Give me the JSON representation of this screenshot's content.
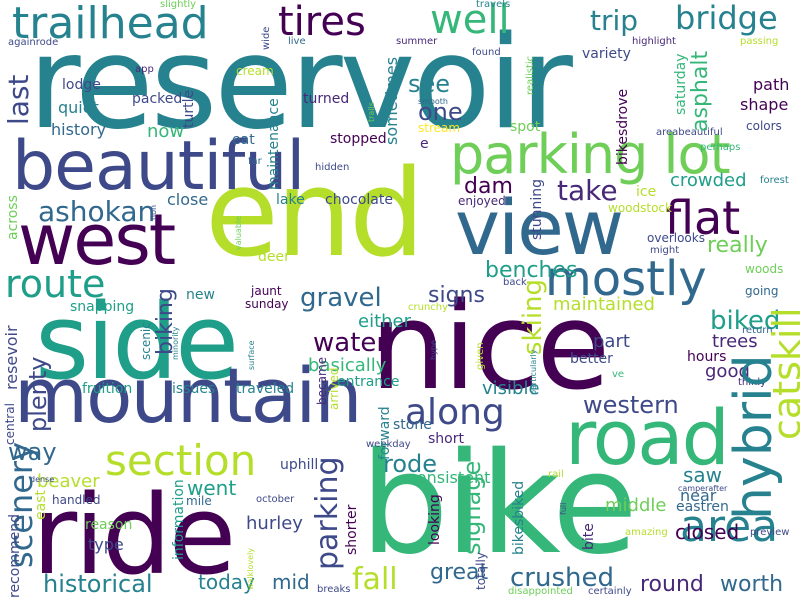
{
  "palette": {
    "background": "#ffffff",
    "colors": [
      "#440154",
      "#482878",
      "#3e4989",
      "#31688e",
      "#26828e",
      "#1f9e89",
      "#35b779",
      "#6ece58",
      "#b5de2b",
      "#fde725"
    ]
  },
  "words": [
    {
      "text": "reservoir",
      "color": "#26828e"
    },
    {
      "text": "end",
      "color": "#b5de2b"
    },
    {
      "text": "nice",
      "color": "#440154"
    },
    {
      "text": "bike",
      "color": "#35b779"
    },
    {
      "text": "side",
      "color": "#1f9e89"
    },
    {
      "text": "ride",
      "color": "#440154"
    },
    {
      "text": "mountain",
      "color": "#3e4989"
    },
    {
      "text": "beautiful",
      "color": "#3e4989"
    },
    {
      "text": "view",
      "color": "#31688e"
    },
    {
      "text": "west",
      "color": "#440154"
    },
    {
      "text": "road",
      "color": "#35b779"
    },
    {
      "text": "parking lot",
      "color": "#6ece58"
    },
    {
      "text": "trailhead",
      "color": "#26828e"
    },
    {
      "text": "mostly",
      "color": "#31688e"
    },
    {
      "text": "section",
      "color": "#b5de2b"
    },
    {
      "text": "hybrid",
      "color": "#26828e"
    },
    {
      "text": "route",
      "color": "#1f9e89"
    },
    {
      "text": "area",
      "color": "#26828e"
    },
    {
      "text": "flat",
      "color": "#440154"
    },
    {
      "text": "tires",
      "color": "#440154"
    },
    {
      "text": "well",
      "color": "#35b779"
    },
    {
      "text": "along",
      "color": "#3e4989"
    },
    {
      "text": "bridge",
      "color": "#26828e"
    },
    {
      "text": "trip",
      "color": "#26828e"
    },
    {
      "text": "ashokan",
      "color": "#31688e"
    },
    {
      "text": "catskill",
      "color": "#b5de2b"
    },
    {
      "text": "scenery",
      "color": "#31688e"
    },
    {
      "text": "historical",
      "color": "#26828e"
    },
    {
      "text": "crushed",
      "color": "#31688e"
    },
    {
      "text": "western",
      "color": "#3e4989"
    },
    {
      "text": "parking",
      "color": "#3e4989"
    },
    {
      "text": "water",
      "color": "#440154"
    },
    {
      "text": "gravel",
      "color": "#31688e"
    },
    {
      "text": "take",
      "color": "#482878"
    },
    {
      "text": "see",
      "color": "#26828e"
    },
    {
      "text": "one",
      "color": "#3e4989"
    },
    {
      "text": "last",
      "color": "#3e4989"
    },
    {
      "text": "really",
      "color": "#6ece58"
    },
    {
      "text": "biked",
      "color": "#1f9e89"
    },
    {
      "text": "benches",
      "color": "#1f9e89"
    },
    {
      "text": "signs",
      "color": "#3e4989"
    },
    {
      "text": "dam",
      "color": "#440154"
    },
    {
      "text": "crowded",
      "color": "#1f9e89"
    },
    {
      "text": "skiing",
      "color": "#b5de2b"
    },
    {
      "text": "fall",
      "color": "#b5de2b"
    },
    {
      "text": "great",
      "color": "#31688e"
    },
    {
      "text": "round",
      "color": "#482878"
    },
    {
      "text": "worth",
      "color": "#31688e"
    },
    {
      "text": "way",
      "color": "#31688e"
    },
    {
      "text": "went",
      "color": "#1f9e89"
    },
    {
      "text": "rode",
      "color": "#26828e"
    },
    {
      "text": "saw",
      "color": "#26828e"
    },
    {
      "text": "signage",
      "color": "#35b779"
    },
    {
      "text": "closed",
      "color": "#440154"
    },
    {
      "text": "beaver",
      "color": "#b5de2b"
    },
    {
      "text": "plenty",
      "color": "#3e4989"
    },
    {
      "text": "today",
      "color": "#26828e"
    },
    {
      "text": "mid",
      "color": "#31688e"
    },
    {
      "text": "asphalt",
      "color": "#35b779"
    },
    {
      "text": "maintained",
      "color": "#b5de2b"
    },
    {
      "text": "basically",
      "color": "#35b779"
    },
    {
      "text": "biking",
      "color": "#3e4989"
    },
    {
      "text": "path",
      "color": "#440154"
    },
    {
      "text": "shape",
      "color": "#440154"
    },
    {
      "text": "quiet",
      "color": "#26828e"
    },
    {
      "text": "history",
      "color": "#31688e"
    },
    {
      "text": "lodge",
      "color": "#3e4989"
    },
    {
      "text": "packed",
      "color": "#3e4989"
    },
    {
      "text": "now",
      "color": "#35b779"
    },
    {
      "text": "turned",
      "color": "#482878"
    },
    {
      "text": "sometimes",
      "color": "#26828e"
    },
    {
      "text": "trees",
      "color": "#482878"
    },
    {
      "text": "good",
      "color": "#482878"
    },
    {
      "text": "part",
      "color": "#3e4989"
    },
    {
      "text": "visible",
      "color": "#26828e"
    },
    {
      "text": "either",
      "color": "#1f9e89"
    },
    {
      "text": "hurley",
      "color": "#3e4989"
    },
    {
      "text": "type",
      "color": "#3e4989"
    },
    {
      "text": "middle",
      "color": "#6ece58"
    },
    {
      "text": "near",
      "color": "#31688e"
    },
    {
      "text": "hours",
      "color": "#440154"
    },
    {
      "text": "better",
      "color": "#3e4989"
    },
    {
      "text": "uphill",
      "color": "#3e4989"
    },
    {
      "text": "stone",
      "color": "#31688e"
    },
    {
      "text": "short",
      "color": "#482878"
    },
    {
      "text": "consistent",
      "color": "#35b779"
    },
    {
      "text": "entrance",
      "color": "#1f9e89"
    },
    {
      "text": "issues",
      "color": "#26828e"
    },
    {
      "text": "fruition",
      "color": "#1f9e89"
    },
    {
      "text": "traveled",
      "color": "#26828e"
    },
    {
      "text": "new",
      "color": "#26828e"
    },
    {
      "text": "close",
      "color": "#31688e"
    },
    {
      "text": "chocolate",
      "color": "#3e4989"
    },
    {
      "text": "lake",
      "color": "#26828e"
    },
    {
      "text": "maintenance",
      "color": "#26828e"
    },
    {
      "text": "stopped",
      "color": "#440154"
    },
    {
      "text": "woodstock",
      "color": "#b5de2b"
    },
    {
      "text": "enjoyed",
      "color": "#482878"
    },
    {
      "text": "stunning",
      "color": "#3e4989"
    },
    {
      "text": "colors",
      "color": "#3e4989"
    },
    {
      "text": "variety",
      "color": "#3e4989"
    },
    {
      "text": "saturday",
      "color": "#35b779"
    },
    {
      "text": "bikesdrove",
      "color": "#440154"
    },
    {
      "text": "forward",
      "color": "#26828e"
    },
    {
      "text": "sunday",
      "color": "#440154"
    },
    {
      "text": "jaunt",
      "color": "#440154"
    },
    {
      "text": "became",
      "color": "#482878"
    },
    {
      "text": "eastren",
      "color": "#31688e"
    },
    {
      "text": "reason",
      "color": "#6ece58"
    },
    {
      "text": "arrived",
      "color": "#b5de2b"
    },
    {
      "text": "handled",
      "color": "#3e4989"
    },
    {
      "text": "information",
      "color": "#1f9e89"
    },
    {
      "text": "mile",
      "color": "#31688e"
    },
    {
      "text": "east",
      "color": "#b5de2b"
    },
    {
      "text": "shorter",
      "color": "#440154"
    },
    {
      "text": "looking",
      "color": "#440154"
    },
    {
      "text": "bikesbiked",
      "color": "#26828e"
    },
    {
      "text": "totally",
      "color": "#3e4989"
    },
    {
      "text": "bite",
      "color": "#482878"
    },
    {
      "text": "deer",
      "color": "#b5de2b"
    },
    {
      "text": "cream",
      "color": "#b5de2b"
    },
    {
      "text": "eat",
      "color": "#31688e"
    },
    {
      "text": "ice",
      "color": "#b5de2b"
    },
    {
      "text": "spot",
      "color": "#6ece58"
    },
    {
      "text": "stream",
      "color": "#fde725"
    },
    {
      "text": "e",
      "color": "#482878"
    },
    {
      "text": "turtle",
      "color": "#3e4989"
    },
    {
      "text": "app",
      "color": "#482878"
    },
    {
      "text": "across",
      "color": "#6ece58"
    },
    {
      "text": "snapping",
      "color": "#1f9e89"
    },
    {
      "text": "scenic",
      "color": "#26828e"
    },
    {
      "text": "resevoir",
      "color": "#3e4989"
    },
    {
      "text": "central",
      "color": "#3e4989"
    },
    {
      "text": "overlooks",
      "color": "#3e4989"
    },
    {
      "text": "woods",
      "color": "#6ece58"
    },
    {
      "text": "going",
      "color": "#31688e"
    },
    {
      "text": "thinly",
      "color": "#482878"
    },
    {
      "text": "slightly",
      "color": "#6ece58"
    },
    {
      "text": "travels",
      "color": "#26828e"
    },
    {
      "text": "againrode",
      "color": "#3e4989"
    },
    {
      "text": "recommend",
      "color": "#3e4989"
    },
    {
      "text": "live",
      "color": "#31688e"
    },
    {
      "text": "summer",
      "color": "#482878"
    },
    {
      "text": "found",
      "color": "#3e4989"
    },
    {
      "text": "wide",
      "color": "#3e4989"
    },
    {
      "text": "highlight",
      "color": "#482878"
    },
    {
      "text": "passing",
      "color": "#b5de2b"
    },
    {
      "text": "smooth",
      "color": "#31688e"
    },
    {
      "text": "realistic",
      "color": "#6ece58"
    },
    {
      "text": "areabeautiful",
      "color": "#3e4989"
    },
    {
      "text": "perhaps",
      "color": "#35b779"
    },
    {
      "text": "forest",
      "color": "#26828e"
    },
    {
      "text": "hidden",
      "color": "#3e4989"
    },
    {
      "text": "far",
      "color": "#31688e"
    },
    {
      "text": "trails",
      "color": "#6ece58"
    },
    {
      "text": "valuable",
      "color": "#6ece58"
    },
    {
      "text": "might",
      "color": "#3e4989"
    },
    {
      "text": "return",
      "color": "#31688e"
    },
    {
      "text": "back",
      "color": "#3e4989"
    },
    {
      "text": "non",
      "color": "#3e4989"
    },
    {
      "text": "minority",
      "color": "#26828e"
    },
    {
      "text": "surface",
      "color": "#26828e"
    },
    {
      "text": "crunchy",
      "color": "#b5de2b"
    },
    {
      "text": "particularly",
      "color": "#26828e"
    },
    {
      "text": "hype",
      "color": "#3e4989"
    },
    {
      "text": "ve",
      "color": "#35b779"
    },
    {
      "text": "given",
      "color": "#b5de2b"
    },
    {
      "text": "rail",
      "color": "#b5de2b"
    },
    {
      "text": "weekday",
      "color": "#3e4989"
    },
    {
      "text": "october",
      "color": "#3e4989"
    },
    {
      "text": "walklovely",
      "color": "#b5de2b"
    },
    {
      "text": "dense",
      "color": "#3e4989"
    },
    {
      "text": "camperafter",
      "color": "#3e4989"
    },
    {
      "text": "full",
      "color": "#3e4989"
    },
    {
      "text": "amazing",
      "color": "#b5de2b"
    },
    {
      "text": "preview",
      "color": "#3e4989"
    },
    {
      "text": "breaks",
      "color": "#3e4989"
    },
    {
      "text": "disappointed",
      "color": "#6ece58"
    },
    {
      "text": "certainly",
      "color": "#3e4989"
    }
  ]
}
